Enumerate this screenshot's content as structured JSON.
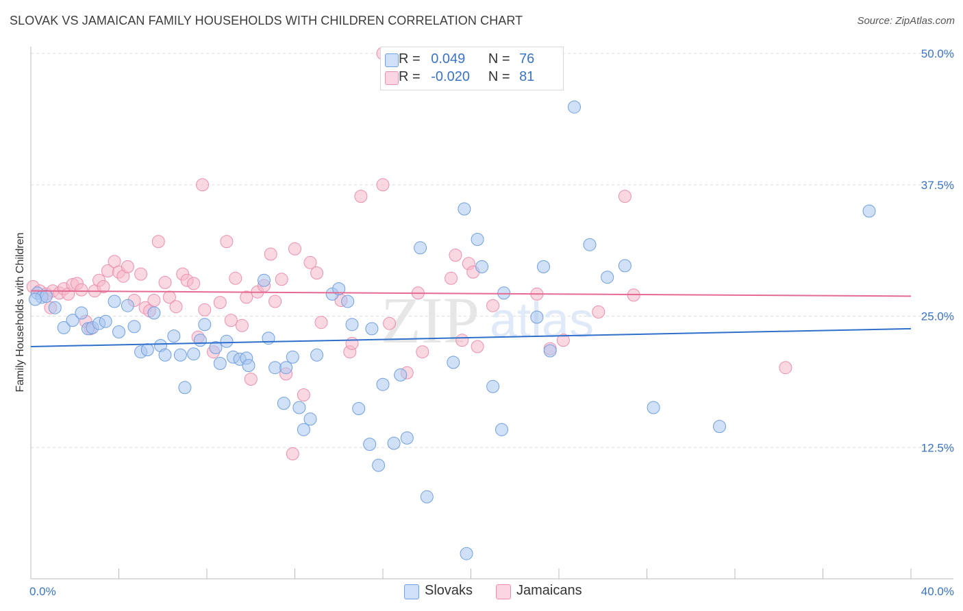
{
  "title": "SLOVAK VS JAMAICAN FAMILY HOUSEHOLDS WITH CHILDREN CORRELATION CHART",
  "source": "Source: ZipAtlas.com",
  "watermark": {
    "zip": "ZIP",
    "atlas": "atlas"
  },
  "legend": {
    "rows": [
      {
        "r_label": "R =",
        "r_value": "0.049",
        "n_label": "N =",
        "n_value": "76",
        "color": "#a9c7f0"
      },
      {
        "r_label": "R =",
        "r_value": "-0.020",
        "n_label": "N =",
        "n_value": "81",
        "color": "#f6b8cb"
      }
    ],
    "bottom": [
      {
        "label": "Slovaks",
        "color": "#a9c7f0"
      },
      {
        "label": "Jamaicans",
        "color": "#f6b8cb"
      }
    ]
  },
  "chart_data": {
    "type": "scatter",
    "xlabel": "",
    "ylabel": "Family Households with Children",
    "xlim": [
      0,
      40
    ],
    "ylim": [
      0,
      50
    ],
    "x_tick_labels": [
      "0.0%",
      "40.0%"
    ],
    "y_ticks": [
      12.5,
      25.0,
      37.5,
      50.0
    ],
    "y_tick_labels": [
      "12.5%",
      "25.0%",
      "37.5%",
      "50.0%"
    ],
    "series": [
      {
        "name": "Slovaks",
        "color": "#a9c7f0",
        "stroke": "#6f9fe0",
        "trend": {
          "x": [
            0,
            40
          ],
          "y": [
            22.1,
            23.8
          ],
          "color": "#2f6fcc"
        },
        "points": [
          [
            0.3,
            27.2
          ],
          [
            0.5,
            26.8
          ],
          [
            0.7,
            26.9
          ],
          [
            1.1,
            25.8
          ],
          [
            1.5,
            23.9
          ],
          [
            1.9,
            24.6
          ],
          [
            2.3,
            25.3
          ],
          [
            2.6,
            23.8
          ],
          [
            2.8,
            23.9
          ],
          [
            3.1,
            24.3
          ],
          [
            3.4,
            24.5
          ],
          [
            3.8,
            26.4
          ],
          [
            4.0,
            23.5
          ],
          [
            4.4,
            26.0
          ],
          [
            4.7,
            24.0
          ],
          [
            5.0,
            21.6
          ],
          [
            5.3,
            21.8
          ],
          [
            5.6,
            25.3
          ],
          [
            5.9,
            22.2
          ],
          [
            6.1,
            21.3
          ],
          [
            6.5,
            23.1
          ],
          [
            6.8,
            21.3
          ],
          [
            7.0,
            18.2
          ],
          [
            7.4,
            21.4
          ],
          [
            7.7,
            22.7
          ],
          [
            7.9,
            24.2
          ],
          [
            8.4,
            22.0
          ],
          [
            8.6,
            20.5
          ],
          [
            8.9,
            22.6
          ],
          [
            9.2,
            21.1
          ],
          [
            9.5,
            20.9
          ],
          [
            9.8,
            21.0
          ],
          [
            9.9,
            20.3
          ],
          [
            10.6,
            28.4
          ],
          [
            10.8,
            22.9
          ],
          [
            11.1,
            20.1
          ],
          [
            11.5,
            16.7
          ],
          [
            11.6,
            20.1
          ],
          [
            11.9,
            21.1
          ],
          [
            12.2,
            16.3
          ],
          [
            12.4,
            14.2
          ],
          [
            12.7,
            15.2
          ],
          [
            13.0,
            21.3
          ],
          [
            13.7,
            27.1
          ],
          [
            14.0,
            27.6
          ],
          [
            14.4,
            26.4
          ],
          [
            14.6,
            24.2
          ],
          [
            14.9,
            16.2
          ],
          [
            15.4,
            12.8
          ],
          [
            15.5,
            23.8
          ],
          [
            15.8,
            10.8
          ],
          [
            16.0,
            18.5
          ],
          [
            16.5,
            12.9
          ],
          [
            16.8,
            19.4
          ],
          [
            17.1,
            13.4
          ],
          [
            17.7,
            31.5
          ],
          [
            18.0,
            7.8
          ],
          [
            19.2,
            20.6
          ],
          [
            19.7,
            35.2
          ],
          [
            19.8,
            2.4
          ],
          [
            20.3,
            32.3
          ],
          [
            20.5,
            29.7
          ],
          [
            21.0,
            18.3
          ],
          [
            21.4,
            14.2
          ],
          [
            21.5,
            27.2
          ],
          [
            23.0,
            24.9
          ],
          [
            23.3,
            29.7
          ],
          [
            23.6,
            21.7
          ],
          [
            24.7,
            44.9
          ],
          [
            25.4,
            31.8
          ],
          [
            26.2,
            28.7
          ],
          [
            27.0,
            29.8
          ],
          [
            28.3,
            16.3
          ],
          [
            31.3,
            14.5
          ],
          [
            38.1,
            35.0
          ],
          [
            0.2,
            26.6
          ]
        ]
      },
      {
        "name": "Jamaicans",
        "color": "#f6b8cb",
        "stroke": "#ec8fac",
        "trend": {
          "x": [
            0,
            40
          ],
          "y": [
            27.4,
            26.9
          ],
          "color": "#e56a92"
        },
        "points": [
          [
            0.1,
            27.8
          ],
          [
            0.4,
            27.4
          ],
          [
            0.7,
            27.1
          ],
          [
            0.9,
            25.8
          ],
          [
            1.0,
            27.4
          ],
          [
            1.3,
            27.2
          ],
          [
            1.5,
            27.6
          ],
          [
            1.7,
            27.1
          ],
          [
            1.9,
            28.0
          ],
          [
            2.1,
            28.1
          ],
          [
            2.3,
            27.5
          ],
          [
            2.5,
            24.5
          ],
          [
            2.7,
            23.8
          ],
          [
            2.9,
            27.4
          ],
          [
            3.1,
            28.4
          ],
          [
            3.3,
            27.8
          ],
          [
            3.5,
            29.3
          ],
          [
            3.8,
            30.2
          ],
          [
            4.0,
            29.2
          ],
          [
            4.2,
            28.8
          ],
          [
            4.4,
            29.7
          ],
          [
            4.7,
            26.5
          ],
          [
            5.0,
            29.0
          ],
          [
            5.2,
            25.8
          ],
          [
            5.4,
            25.5
          ],
          [
            5.6,
            26.5
          ],
          [
            5.8,
            32.1
          ],
          [
            6.1,
            28.2
          ],
          [
            6.3,
            26.8
          ],
          [
            6.6,
            25.9
          ],
          [
            6.9,
            29.0
          ],
          [
            7.1,
            28.4
          ],
          [
            7.4,
            28.1
          ],
          [
            7.6,
            23.0
          ],
          [
            7.8,
            37.5
          ],
          [
            7.9,
            25.6
          ],
          [
            8.3,
            21.6
          ],
          [
            8.6,
            26.3
          ],
          [
            8.9,
            32.1
          ],
          [
            9.1,
            24.6
          ],
          [
            9.3,
            28.6
          ],
          [
            9.6,
            24.1
          ],
          [
            9.8,
            26.8
          ],
          [
            10.0,
            19.0
          ],
          [
            10.3,
            27.3
          ],
          [
            10.6,
            27.9
          ],
          [
            10.9,
            30.9
          ],
          [
            11.1,
            26.4
          ],
          [
            11.4,
            28.5
          ],
          [
            11.6,
            19.5
          ],
          [
            11.9,
            11.9
          ],
          [
            12.0,
            31.4
          ],
          [
            12.4,
            17.5
          ],
          [
            12.7,
            30.1
          ],
          [
            13.0,
            29.1
          ],
          [
            13.2,
            24.4
          ],
          [
            14.1,
            26.5
          ],
          [
            14.5,
            21.6
          ],
          [
            14.6,
            22.4
          ],
          [
            15.0,
            36.4
          ],
          [
            16.0,
            37.5
          ],
          [
            16.3,
            24.3
          ],
          [
            17.1,
            19.6
          ],
          [
            17.6,
            27.2
          ],
          [
            17.8,
            21.6
          ],
          [
            18.6,
            49.9
          ],
          [
            19.1,
            28.6
          ],
          [
            19.3,
            30.8
          ],
          [
            19.6,
            22.7
          ],
          [
            19.9,
            30.0
          ],
          [
            20.1,
            29.2
          ],
          [
            20.3,
            22.1
          ],
          [
            21.0,
            26.0
          ],
          [
            23.0,
            27.1
          ],
          [
            23.6,
            21.9
          ],
          [
            24.2,
            22.7
          ],
          [
            25.8,
            25.4
          ],
          [
            27.0,
            36.4
          ],
          [
            27.4,
            27.0
          ],
          [
            34.3,
            20.1
          ],
          [
            16.0,
            50.0
          ]
        ]
      }
    ]
  }
}
